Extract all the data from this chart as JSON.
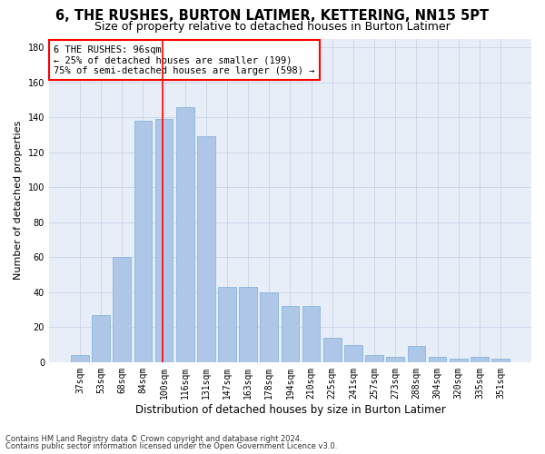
{
  "title": "6, THE RUSHES, BURTON LATIMER, KETTERING, NN15 5PT",
  "subtitle": "Size of property relative to detached houses in Burton Latimer",
  "xlabel": "Distribution of detached houses by size in Burton Latimer",
  "ylabel": "Number of detached properties",
  "footer_line1": "Contains HM Land Registry data © Crown copyright and database right 2024.",
  "footer_line2": "Contains public sector information licensed under the Open Government Licence v3.0.",
  "categories": [
    "37sqm",
    "53sqm",
    "68sqm",
    "84sqm",
    "100sqm",
    "116sqm",
    "131sqm",
    "147sqm",
    "163sqm",
    "178sqm",
    "194sqm",
    "210sqm",
    "225sqm",
    "241sqm",
    "257sqm",
    "273sqm",
    "288sqm",
    "304sqm",
    "320sqm",
    "335sqm",
    "351sqm"
  ],
  "values": [
    4,
    27,
    60,
    138,
    139,
    146,
    129,
    43,
    43,
    40,
    32,
    32,
    14,
    10,
    4,
    3,
    9,
    3,
    2,
    3,
    2
  ],
  "bar_color": "#aec6e8",
  "bar_edgecolor": "#7aaed4",
  "grid_color": "#c8d4e8",
  "background_color": "#e8eef8",
  "vline_color": "red",
  "annotation_text": "6 THE RUSHES: 96sqm\n← 25% of detached houses are smaller (199)\n75% of semi-detached houses are larger (598) →",
  "annotation_box_color": "white",
  "annotation_box_edgecolor": "red",
  "ylim": [
    0,
    185
  ],
  "yticks": [
    0,
    20,
    40,
    60,
    80,
    100,
    120,
    140,
    160,
    180
  ],
  "title_fontsize": 10.5,
  "subtitle_fontsize": 9,
  "axis_label_fontsize": 8.5,
  "ylabel_fontsize": 8,
  "tick_fontsize": 7,
  "annotation_fontsize": 7.5,
  "footer_fontsize": 6
}
